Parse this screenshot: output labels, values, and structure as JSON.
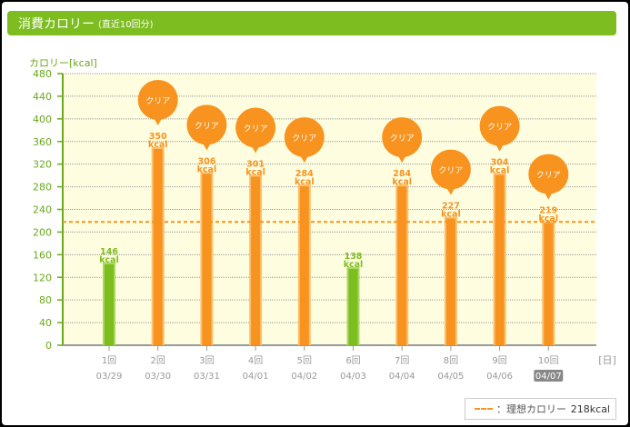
{
  "header": {
    "title": "消費カロリー",
    "subtitle": "(直近10回分)"
  },
  "chart_data": {
    "type": "bar",
    "title": "消費カロリー (直近10回分)",
    "ylabel": "カロリー[kcal]",
    "xlabel": "[日]",
    "ylim": [
      0,
      480
    ],
    "yticks": [
      0,
      40,
      80,
      120,
      160,
      200,
      240,
      280,
      320,
      360,
      400,
      440,
      480
    ],
    "categories": [
      "1回",
      "2回",
      "3回",
      "4回",
      "5回",
      "6回",
      "7回",
      "8回",
      "9回",
      "10回"
    ],
    "dates": [
      "03/29",
      "03/30",
      "03/31",
      "04/01",
      "04/02",
      "04/03",
      "04/04",
      "04/05",
      "04/06",
      "04/07"
    ],
    "values": [
      146,
      350,
      306,
      301,
      284,
      138,
      284,
      227,
      304,
      219
    ],
    "value_unit": "kcal",
    "badge_label": "クリア",
    "highlighted_date": "04/07",
    "reference_line": {
      "value": 218,
      "label": "：理想カロリー",
      "value_label": "218kcal"
    },
    "colors": {
      "cleared": "#f7931e",
      "not_cleared": "#7dbd20",
      "plot_bg": "#fffde0",
      "axis": "#6aa81c"
    },
    "grid": true
  }
}
